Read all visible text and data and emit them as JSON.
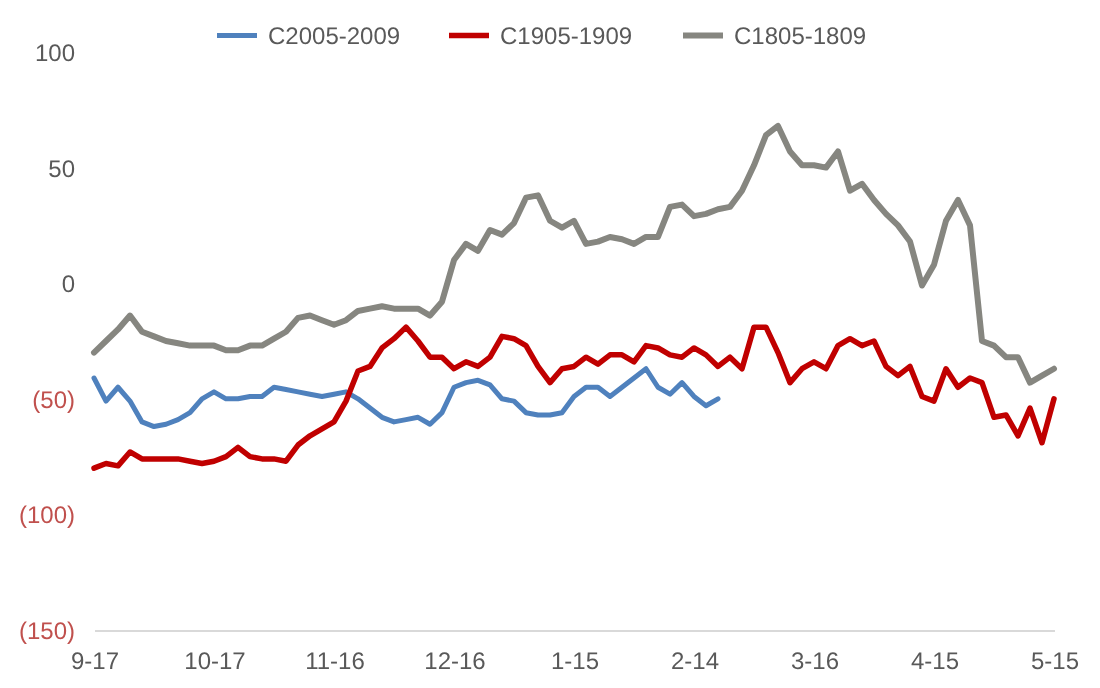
{
  "chart_data": {
    "type": "line",
    "categories": [
      "9-17",
      null,
      null,
      null,
      null,
      null,
      null,
      null,
      null,
      null,
      "10-17",
      null,
      null,
      null,
      null,
      null,
      null,
      null,
      null,
      null,
      "11-16",
      null,
      null,
      null,
      null,
      null,
      null,
      null,
      null,
      null,
      "12-16",
      null,
      null,
      null,
      null,
      null,
      null,
      null,
      null,
      null,
      "1-15",
      null,
      null,
      null,
      null,
      null,
      null,
      null,
      null,
      null,
      "2-14",
      null,
      null,
      null,
      null,
      null,
      null,
      null,
      null,
      null,
      "3-16",
      null,
      null,
      null,
      null,
      null,
      null,
      null,
      null,
      null,
      "4-15",
      null,
      null,
      null,
      null,
      null,
      null,
      null,
      null,
      null,
      "5-15"
    ],
    "series": [
      {
        "name": "C2005-2009",
        "color": "#4f81bd",
        "values": [
          -41,
          -51,
          -45,
          -51,
          -60,
          -62,
          -61,
          -59,
          -56,
          -50,
          -47,
          -50,
          -50,
          -49,
          -49,
          -45,
          -46,
          -47,
          -48,
          -49,
          -48,
          -47,
          -50,
          -54,
          -58,
          -60,
          -59,
          -58,
          -61,
          -56,
          -45,
          -43,
          -42,
          -44,
          -50,
          -51,
          -56,
          -57,
          -57,
          -56,
          -49,
          -45,
          -45,
          -49,
          -45,
          -41,
          -37,
          -45,
          -48,
          -43,
          -49,
          -53,
          -50,
          null,
          null,
          null,
          null,
          null,
          null,
          null,
          null,
          null,
          null,
          null,
          null,
          null,
          null,
          null,
          null,
          null,
          null,
          null,
          null,
          null,
          null,
          null,
          null,
          null,
          null,
          null,
          null
        ]
      },
      {
        "name": "C1905-1909",
        "color": "#c00000",
        "values": [
          -80,
          -78,
          -79,
          -73,
          -76,
          -76,
          -76,
          -76,
          -77,
          -78,
          -77,
          -75,
          -71,
          -75,
          -76,
          -76,
          -77,
          -70,
          -66,
          -63,
          -60,
          -51,
          -38,
          -36,
          -28,
          -24,
          -19,
          -25,
          -32,
          -32,
          -37,
          -34,
          -36,
          -32,
          -23,
          -24,
          -27,
          -36,
          -43,
          -37,
          -36,
          -32,
          -35,
          -31,
          -31,
          -34,
          -27,
          -28,
          -31,
          -32,
          -28,
          -31,
          -36,
          -32,
          -37,
          -19,
          -19,
          -30,
          -43,
          -37,
          -34,
          -37,
          -27,
          -24,
          -27,
          -25,
          -36,
          -40,
          -36,
          -49,
          -51,
          -37,
          -45,
          -41,
          -43,
          -58,
          -57,
          -66,
          -54,
          -69,
          -50
        ]
      },
      {
        "name": "C1805-1809",
        "color": "#868680",
        "values": [
          -30,
          -25,
          -20,
          -14,
          -21,
          -23,
          -25,
          -26,
          -27,
          -27,
          -27,
          -29,
          -29,
          -27,
          -27,
          -24,
          -21,
          -15,
          -14,
          -16,
          -18,
          -16,
          -12,
          -11,
          -10,
          -11,
          -11,
          -11,
          -14,
          -8,
          10,
          17,
          14,
          23,
          21,
          26,
          37,
          38,
          27,
          24,
          27,
          17,
          18,
          20,
          19,
          17,
          20,
          20,
          33,
          34,
          29,
          30,
          32,
          33,
          40,
          51,
          64,
          68,
          57,
          51,
          51,
          50,
          57,
          40,
          43,
          36,
          30,
          25,
          18,
          -1,
          8,
          27,
          36,
          25,
          -25,
          -27,
          -32,
          -32,
          -43,
          -40,
          -37
        ]
      }
    ],
    "ylim": [
      -150,
      100
    ],
    "yticks": [
      100,
      50,
      0,
      {
        "value": -50,
        "label": "(50)"
      },
      {
        "value": -100,
        "label": "(100)"
      },
      {
        "value": -150,
        "label": "(150)"
      }
    ],
    "grid": false,
    "legend": "top",
    "marker": "none",
    "line_style": "solid"
  }
}
